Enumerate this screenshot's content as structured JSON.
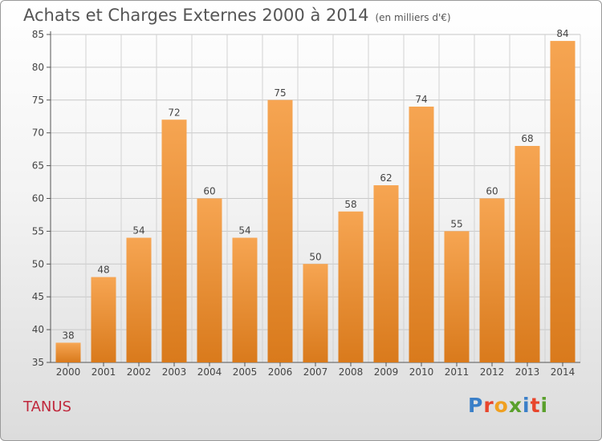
{
  "title": "Achats et Charges Externes 2000 à 2014",
  "subtitle": "(en milliers d'€)",
  "commune": "TANUS",
  "logo": "Proxiti",
  "colors": {
    "bar_top": "#f6a552",
    "bar_bottom": "#d97a1c",
    "commune": "#c0283c",
    "logo_letters": [
      "#3a7fc8",
      "#e8452c",
      "#f0a020",
      "#5aa02c",
      "#3a7fc8",
      "#e8452c",
      "#5aa02c"
    ]
  },
  "chart_data": {
    "type": "bar",
    "title": "Achats et Charges Externes 2000 à 2014",
    "subtitle": "(en milliers d'€)",
    "xlabel": "",
    "ylabel": "",
    "categories": [
      "2000",
      "2001",
      "2002",
      "2003",
      "2004",
      "2005",
      "2006",
      "2007",
      "2008",
      "2009",
      "2010",
      "2011",
      "2012",
      "2013",
      "2014"
    ],
    "values": [
      38,
      48,
      54,
      72,
      60,
      54,
      75,
      50,
      58,
      62,
      74,
      55,
      60,
      68,
      84
    ],
    "ylim": [
      35,
      85
    ],
    "yticks": [
      35,
      40,
      45,
      50,
      55,
      60,
      65,
      70,
      75,
      80,
      85
    ],
    "grid": true,
    "data_labels": true
  }
}
